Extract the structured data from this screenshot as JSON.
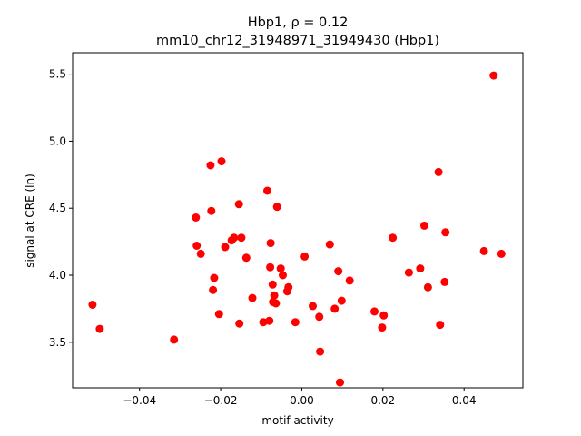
{
  "chart_data": {
    "type": "scatter",
    "title_line1": "Hbp1, ρ = 0.12",
    "title_line2": "mm10_chr12_31948971_31949430 (Hbp1)",
    "xlabel": "motif activity",
    "ylabel": "signal at CRE (ln)",
    "xlim": [
      -0.0565,
      0.0545
    ],
    "ylim": [
      3.16,
      5.66
    ],
    "xticks": [
      -0.04,
      -0.02,
      0.0,
      0.02,
      0.04
    ],
    "xtick_labels": [
      "−0.04",
      "−0.02",
      "0.00",
      "0.02",
      "0.04"
    ],
    "yticks": [
      3.5,
      4.0,
      4.5,
      5.0,
      5.5
    ],
    "ytick_labels": [
      "3.5",
      "4.0",
      "4.5",
      "5.0",
      "5.5"
    ],
    "grid": false,
    "marker_color": "#ff0000",
    "points": [
      [
        -0.0516,
        3.78
      ],
      [
        -0.0498,
        3.6
      ],
      [
        -0.0315,
        3.52
      ],
      [
        -0.0261,
        4.43
      ],
      [
        -0.0259,
        4.22
      ],
      [
        -0.0249,
        4.16
      ],
      [
        -0.0225,
        4.82
      ],
      [
        -0.0223,
        4.48
      ],
      [
        -0.0219,
        3.89
      ],
      [
        -0.0216,
        3.98
      ],
      [
        -0.0204,
        3.71
      ],
      [
        -0.0198,
        4.85
      ],
      [
        -0.0189,
        4.21
      ],
      [
        -0.0173,
        4.26
      ],
      [
        -0.0167,
        4.28
      ],
      [
        -0.0155,
        4.53
      ],
      [
        -0.0154,
        3.64
      ],
      [
        -0.0149,
        4.28
      ],
      [
        -0.0137,
        4.13
      ],
      [
        -0.0122,
        3.83
      ],
      [
        -0.0095,
        3.65
      ],
      [
        -0.0085,
        4.63
      ],
      [
        -0.008,
        3.66
      ],
      [
        -0.0078,
        4.06
      ],
      [
        -0.0077,
        4.24
      ],
      [
        -0.0072,
        3.93
      ],
      [
        -0.0071,
        3.8
      ],
      [
        -0.0068,
        3.85
      ],
      [
        -0.0064,
        3.79
      ],
      [
        -0.0061,
        4.51
      ],
      [
        -0.0052,
        4.05
      ],
      [
        -0.0047,
        4.0
      ],
      [
        -0.0036,
        3.88
      ],
      [
        -0.0033,
        3.91
      ],
      [
        -0.0016,
        3.65
      ],
      [
        0.0007,
        4.14
      ],
      [
        0.0027,
        3.77
      ],
      [
        0.0043,
        3.69
      ],
      [
        0.0045,
        3.43
      ],
      [
        0.0069,
        4.23
      ],
      [
        0.0081,
        3.75
      ],
      [
        0.009,
        4.03
      ],
      [
        0.0094,
        3.2
      ],
      [
        0.0098,
        3.81
      ],
      [
        0.0118,
        3.96
      ],
      [
        0.0179,
        3.73
      ],
      [
        0.0198,
        3.61
      ],
      [
        0.0202,
        3.7
      ],
      [
        0.0224,
        4.28
      ],
      [
        0.0264,
        4.02
      ],
      [
        0.0292,
        4.05
      ],
      [
        0.0302,
        4.37
      ],
      [
        0.0311,
        3.91
      ],
      [
        0.0337,
        4.77
      ],
      [
        0.0341,
        3.63
      ],
      [
        0.0352,
        3.95
      ],
      [
        0.0354,
        4.32
      ],
      [
        0.0449,
        4.18
      ],
      [
        0.0473,
        5.49
      ],
      [
        0.0492,
        4.16
      ]
    ]
  }
}
